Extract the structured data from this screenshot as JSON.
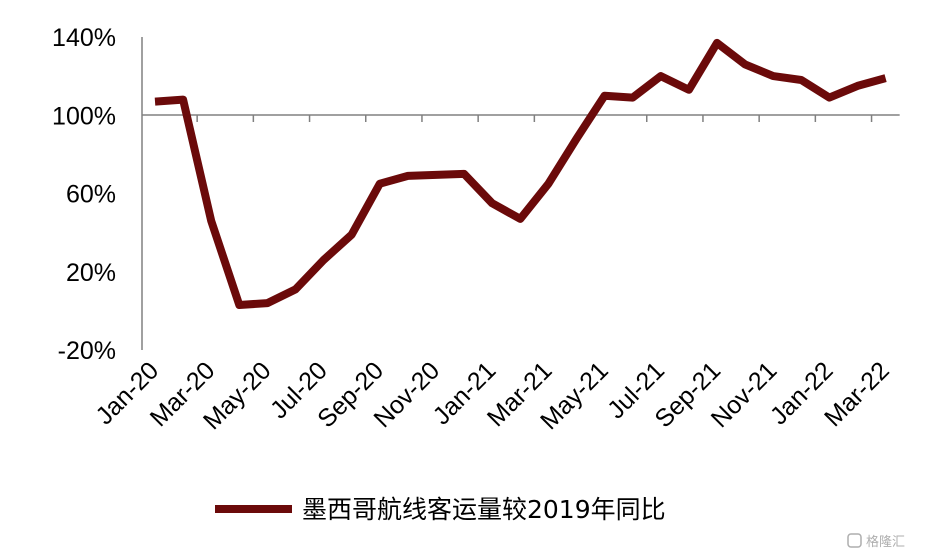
{
  "chart_data": {
    "type": "line",
    "title": "",
    "xlabel": "",
    "ylabel": "",
    "ylim": [
      -20,
      140
    ],
    "yticks": [
      -20,
      20,
      60,
      100,
      140
    ],
    "ytick_labels": [
      "-20%",
      "20%",
      "60%",
      "100%",
      "140%"
    ],
    "x_labels": [
      "Jan-20",
      "Mar-20",
      "May-20",
      "Jul-20",
      "Sep-20",
      "Nov-20",
      "Jan-21",
      "Mar-21",
      "May-21",
      "Jul-21",
      "Sep-21",
      "Nov-21",
      "Jan-22",
      "Mar-22"
    ],
    "x_label_every": 2,
    "grid": false,
    "legend_position": "bottom",
    "series": [
      {
        "name": "墨西哥航线客运量较2019年同比",
        "color": "#6b0a0a",
        "values": [
          107,
          108,
          46,
          3,
          4,
          11,
          26,
          39,
          65,
          69,
          69.5,
          70,
          55,
          47,
          65,
          88,
          110,
          109,
          120,
          113,
          137,
          126,
          120,
          118,
          109,
          115,
          119
        ]
      }
    ]
  },
  "watermark": "格隆汇"
}
